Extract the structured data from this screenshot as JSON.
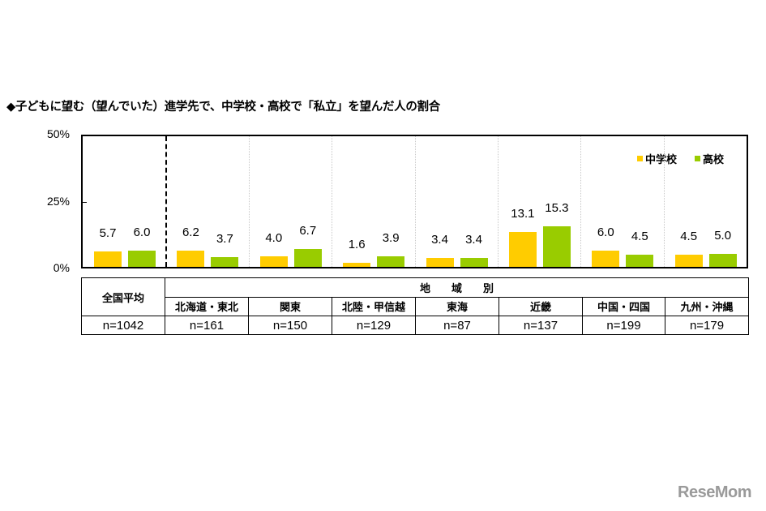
{
  "title": "◆子どもに望む（望んでいた）進学先で、中学校・高校で「私立」を望んだ人の割合",
  "colors": {
    "junior_high": "#FFCC00",
    "high_school": "#99CC00"
  },
  "legend": {
    "junior_high": "中学校",
    "high_school": "高校"
  },
  "yaxis": {
    "ticks": [
      "50%",
      "25%",
      "0%"
    ]
  },
  "table": {
    "national_label": "全国平均",
    "region_header": "地　　域　　別",
    "regions": [
      "北海道・東北",
      "関東",
      "北陸・甲信越",
      "東海",
      "近畿",
      "中国・四国",
      "九州・沖縄"
    ],
    "n_values": [
      "n=1042",
      "n=161",
      "n=150",
      "n=129",
      "n=87",
      "n=137",
      "n=199",
      "n=179"
    ]
  },
  "watermark": "ReseMom",
  "chart_data": {
    "type": "bar",
    "title": "◆子どもに望む（望んでいた）進学先で、中学校・高校で「私立」を望んだ人の割合",
    "categories": [
      "全国平均",
      "北海道・東北",
      "関東",
      "北陸・甲信越",
      "東海",
      "近畿",
      "中国・四国",
      "九州・沖縄"
    ],
    "sample_sizes": [
      1042,
      161,
      150,
      129,
      87,
      137,
      199,
      179
    ],
    "series": [
      {
        "name": "中学校",
        "color": "#FFCC00",
        "values": [
          5.7,
          6.2,
          4.0,
          1.6,
          3.4,
          13.1,
          6.0,
          4.5
        ]
      },
      {
        "name": "高校",
        "color": "#99CC00",
        "values": [
          6.0,
          3.7,
          6.7,
          3.9,
          3.4,
          15.3,
          4.5,
          5.0
        ]
      }
    ],
    "labels": {
      "中学校": [
        "5.7",
        "6.2",
        "4.0",
        "1.6",
        "3.4",
        "13.1",
        "6.0",
        "4.5"
      ],
      "高校": [
        "6.0",
        "3.7",
        "6.7",
        "3.9",
        "3.4",
        "15.3",
        "4.5",
        "5.0"
      ]
    },
    "xlabel": "",
    "ylabel": "",
    "ylim": [
      0,
      50
    ],
    "yticks": [
      0,
      25,
      50
    ],
    "grid": false,
    "legend_position": "top-right",
    "annotations": [
      "dashed separator between 全国平均 and regional groups"
    ]
  }
}
